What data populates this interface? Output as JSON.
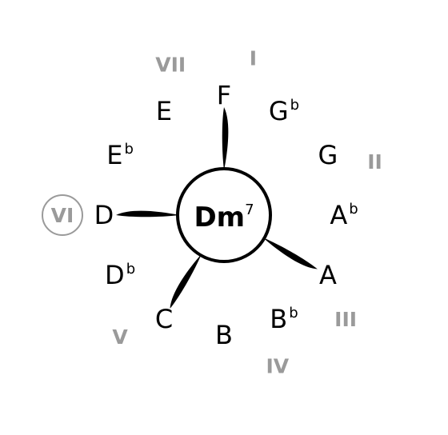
{
  "chord": {
    "root": "Dm",
    "extension": "7"
  },
  "notes": [
    {
      "name": "F",
      "accidental": "",
      "position": 0
    },
    {
      "name": "G",
      "accidental": "b",
      "position": 1
    },
    {
      "name": "G",
      "accidental": "",
      "position": 2
    },
    {
      "name": "A",
      "accidental": "b",
      "position": 3
    },
    {
      "name": "A",
      "accidental": "",
      "position": 4
    },
    {
      "name": "B",
      "accidental": "b",
      "position": 5
    },
    {
      "name": "B",
      "accidental": "",
      "position": 6
    },
    {
      "name": "C",
      "accidental": "",
      "position": 7
    },
    {
      "name": "D",
      "accidental": "b",
      "position": 8
    },
    {
      "name": "D",
      "accidental": "",
      "position": 9
    },
    {
      "name": "E",
      "accidental": "b",
      "position": 10
    },
    {
      "name": "E",
      "accidental": "",
      "position": 11
    }
  ],
  "degrees": [
    {
      "label": "I",
      "position": 0,
      "circled": false
    },
    {
      "label": "II",
      "position": 2,
      "circled": false
    },
    {
      "label": "III",
      "position": 4,
      "circled": false
    },
    {
      "label": "IV",
      "position": 5,
      "circled": false
    },
    {
      "label": "V",
      "position": 7,
      "circled": false
    },
    {
      "label": "VI",
      "position": 9,
      "circled": true
    },
    {
      "label": "VII",
      "position": 11,
      "circled": false
    }
  ],
  "chord_tones": [
    0,
    4,
    7,
    9
  ],
  "colors": {
    "ink": "#000000",
    "degree": "#9a9a9a"
  }
}
